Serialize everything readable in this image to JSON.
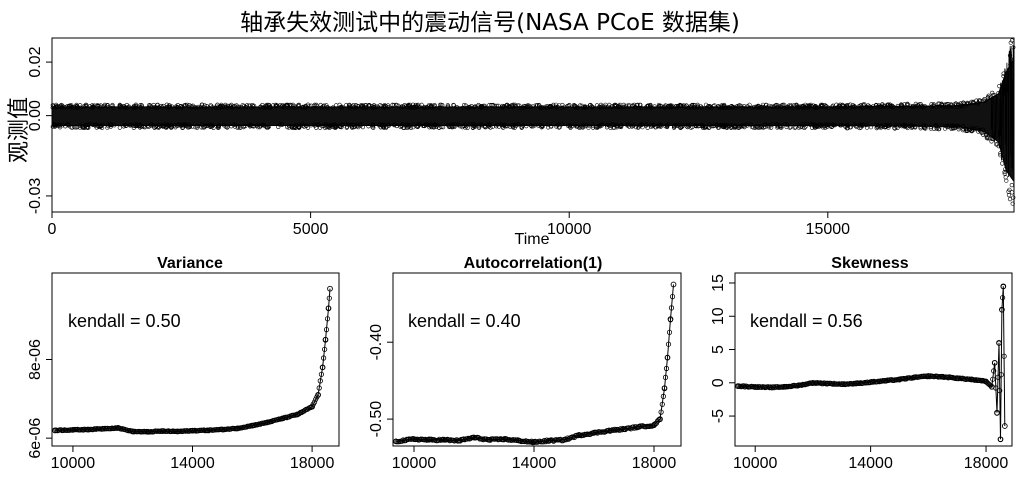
{
  "chart_data": [
    {
      "type": "scatter",
      "title": "轴承失效测试中的震动信号(NASA PCoE 数据集)",
      "xlabel": "Time",
      "ylabel": "观测值",
      "xlim": [
        0,
        18600
      ],
      "ylim": [
        -0.036,
        0.029
      ],
      "xticks": [
        "0",
        "5000",
        "10000",
        "15000"
      ],
      "yticks": [
        "-0.03",
        "0.00",
        "0.02"
      ],
      "description": "Dense vibration signal oscillating roughly within ±0.004 for most of the record, widening sharply near the end (about t=18200-18600) to between -0.037 and 0.028.",
      "envelope": [
        {
          "x": 0,
          "lo": -0.0045,
          "hi": 0.004
        },
        {
          "x": 5000,
          "lo": -0.0045,
          "hi": 0.004
        },
        {
          "x": 10000,
          "lo": -0.0045,
          "hi": 0.004
        },
        {
          "x": 15000,
          "lo": -0.0045,
          "hi": 0.004
        },
        {
          "x": 17500,
          "lo": -0.005,
          "hi": 0.0045
        },
        {
          "x": 18000,
          "lo": -0.007,
          "hi": 0.006
        },
        {
          "x": 18300,
          "lo": -0.012,
          "hi": 0.01
        },
        {
          "x": 18450,
          "lo": -0.025,
          "hi": 0.02
        },
        {
          "x": 18550,
          "lo": -0.037,
          "hi": 0.028
        },
        {
          "x": 18600,
          "lo": -0.03,
          "hi": 0.026
        }
      ]
    },
    {
      "type": "scatter",
      "title": "Variance",
      "annotation": "kendall = 0.50",
      "xlim": [
        9300,
        18900
      ],
      "ylim": [
        5.8e-06,
        1.02e-05
      ],
      "xticks": [
        "10000",
        "14000",
        "18000"
      ],
      "yticks": [
        "6e-06",
        "8e-06"
      ],
      "points": [
        {
          "x": 9400,
          "y": 6.2e-06
        },
        {
          "x": 10000,
          "y": 6.21e-06
        },
        {
          "x": 10500,
          "y": 6.22e-06
        },
        {
          "x": 11000,
          "y": 6.24e-06
        },
        {
          "x": 11500,
          "y": 6.26e-06
        },
        {
          "x": 12000,
          "y": 6.17e-06
        },
        {
          "x": 12500,
          "y": 6.16e-06
        },
        {
          "x": 13000,
          "y": 6.18e-06
        },
        {
          "x": 13500,
          "y": 6.17e-06
        },
        {
          "x": 14000,
          "y": 6.19e-06
        },
        {
          "x": 14500,
          "y": 6.2e-06
        },
        {
          "x": 15000,
          "y": 6.22e-06
        },
        {
          "x": 15500,
          "y": 6.25e-06
        },
        {
          "x": 16000,
          "y": 6.32e-06
        },
        {
          "x": 16500,
          "y": 6.4e-06
        },
        {
          "x": 17000,
          "y": 6.5e-06
        },
        {
          "x": 17500,
          "y": 6.6e-06
        },
        {
          "x": 18000,
          "y": 6.8e-06
        },
        {
          "x": 18200,
          "y": 7.1e-06
        },
        {
          "x": 18350,
          "y": 7.8e-06
        },
        {
          "x": 18450,
          "y": 8.5e-06
        },
        {
          "x": 18550,
          "y": 9.3e-06
        },
        {
          "x": 18600,
          "y": 9.8e-06
        }
      ]
    },
    {
      "type": "scatter",
      "title": "Autocorrelation(1)",
      "annotation": "kendall = 0.40",
      "xlim": [
        9300,
        18900
      ],
      "ylim": [
        -0.535,
        -0.31
      ],
      "xticks": [
        "10000",
        "14000",
        "18000"
      ],
      "yticks": [
        "-0.50",
        "-0.40"
      ],
      "points": [
        {
          "x": 9400,
          "y": -0.529
        },
        {
          "x": 10000,
          "y": -0.526
        },
        {
          "x": 10500,
          "y": -0.527
        },
        {
          "x": 11000,
          "y": -0.527
        },
        {
          "x": 11500,
          "y": -0.528
        },
        {
          "x": 12000,
          "y": -0.524
        },
        {
          "x": 12500,
          "y": -0.527
        },
        {
          "x": 13000,
          "y": -0.526
        },
        {
          "x": 13500,
          "y": -0.528
        },
        {
          "x": 14000,
          "y": -0.53
        },
        {
          "x": 14500,
          "y": -0.528
        },
        {
          "x": 15000,
          "y": -0.527
        },
        {
          "x": 15500,
          "y": -0.521
        },
        {
          "x": 16000,
          "y": -0.518
        },
        {
          "x": 16500,
          "y": -0.515
        },
        {
          "x": 17000,
          "y": -0.513
        },
        {
          "x": 17500,
          "y": -0.51
        },
        {
          "x": 18000,
          "y": -0.508
        },
        {
          "x": 18200,
          "y": -0.5
        },
        {
          "x": 18350,
          "y": -0.46
        },
        {
          "x": 18450,
          "y": -0.42
        },
        {
          "x": 18550,
          "y": -0.37
        },
        {
          "x": 18650,
          "y": -0.325
        }
      ]
    },
    {
      "type": "scatter",
      "title": "Skewness",
      "annotation": "kendall = 0.56",
      "xlim": [
        9300,
        18900
      ],
      "ylim": [
        -9.5,
        16.5
      ],
      "xticks": [
        "10000",
        "14000",
        "18000"
      ],
      "yticks": [
        "-5",
        "0",
        "5",
        "10",
        "15"
      ],
      "points": [
        {
          "x": 9400,
          "y": -0.5
        },
        {
          "x": 10000,
          "y": -0.6
        },
        {
          "x": 10500,
          "y": -0.7
        },
        {
          "x": 11000,
          "y": -0.6
        },
        {
          "x": 11500,
          "y": -0.4
        },
        {
          "x": 12000,
          "y": 0.0
        },
        {
          "x": 12500,
          "y": -0.1
        },
        {
          "x": 13000,
          "y": -0.2
        },
        {
          "x": 13500,
          "y": -0.1
        },
        {
          "x": 14000,
          "y": 0.1
        },
        {
          "x": 14500,
          "y": 0.3
        },
        {
          "x": 15000,
          "y": 0.5
        },
        {
          "x": 15500,
          "y": 0.8
        },
        {
          "x": 16000,
          "y": 1.0
        },
        {
          "x": 16500,
          "y": 0.9
        },
        {
          "x": 17000,
          "y": 0.7
        },
        {
          "x": 17500,
          "y": 0.5
        },
        {
          "x": 18000,
          "y": 0.2
        },
        {
          "x": 18200,
          "y": -0.6
        },
        {
          "x": 18300,
          "y": 3.0
        },
        {
          "x": 18380,
          "y": -4.5
        },
        {
          "x": 18450,
          "y": 6.0
        },
        {
          "x": 18500,
          "y": -8.5
        },
        {
          "x": 18550,
          "y": 11.0
        },
        {
          "x": 18600,
          "y": 14.5
        },
        {
          "x": 18650,
          "y": -6.5
        }
      ]
    }
  ]
}
